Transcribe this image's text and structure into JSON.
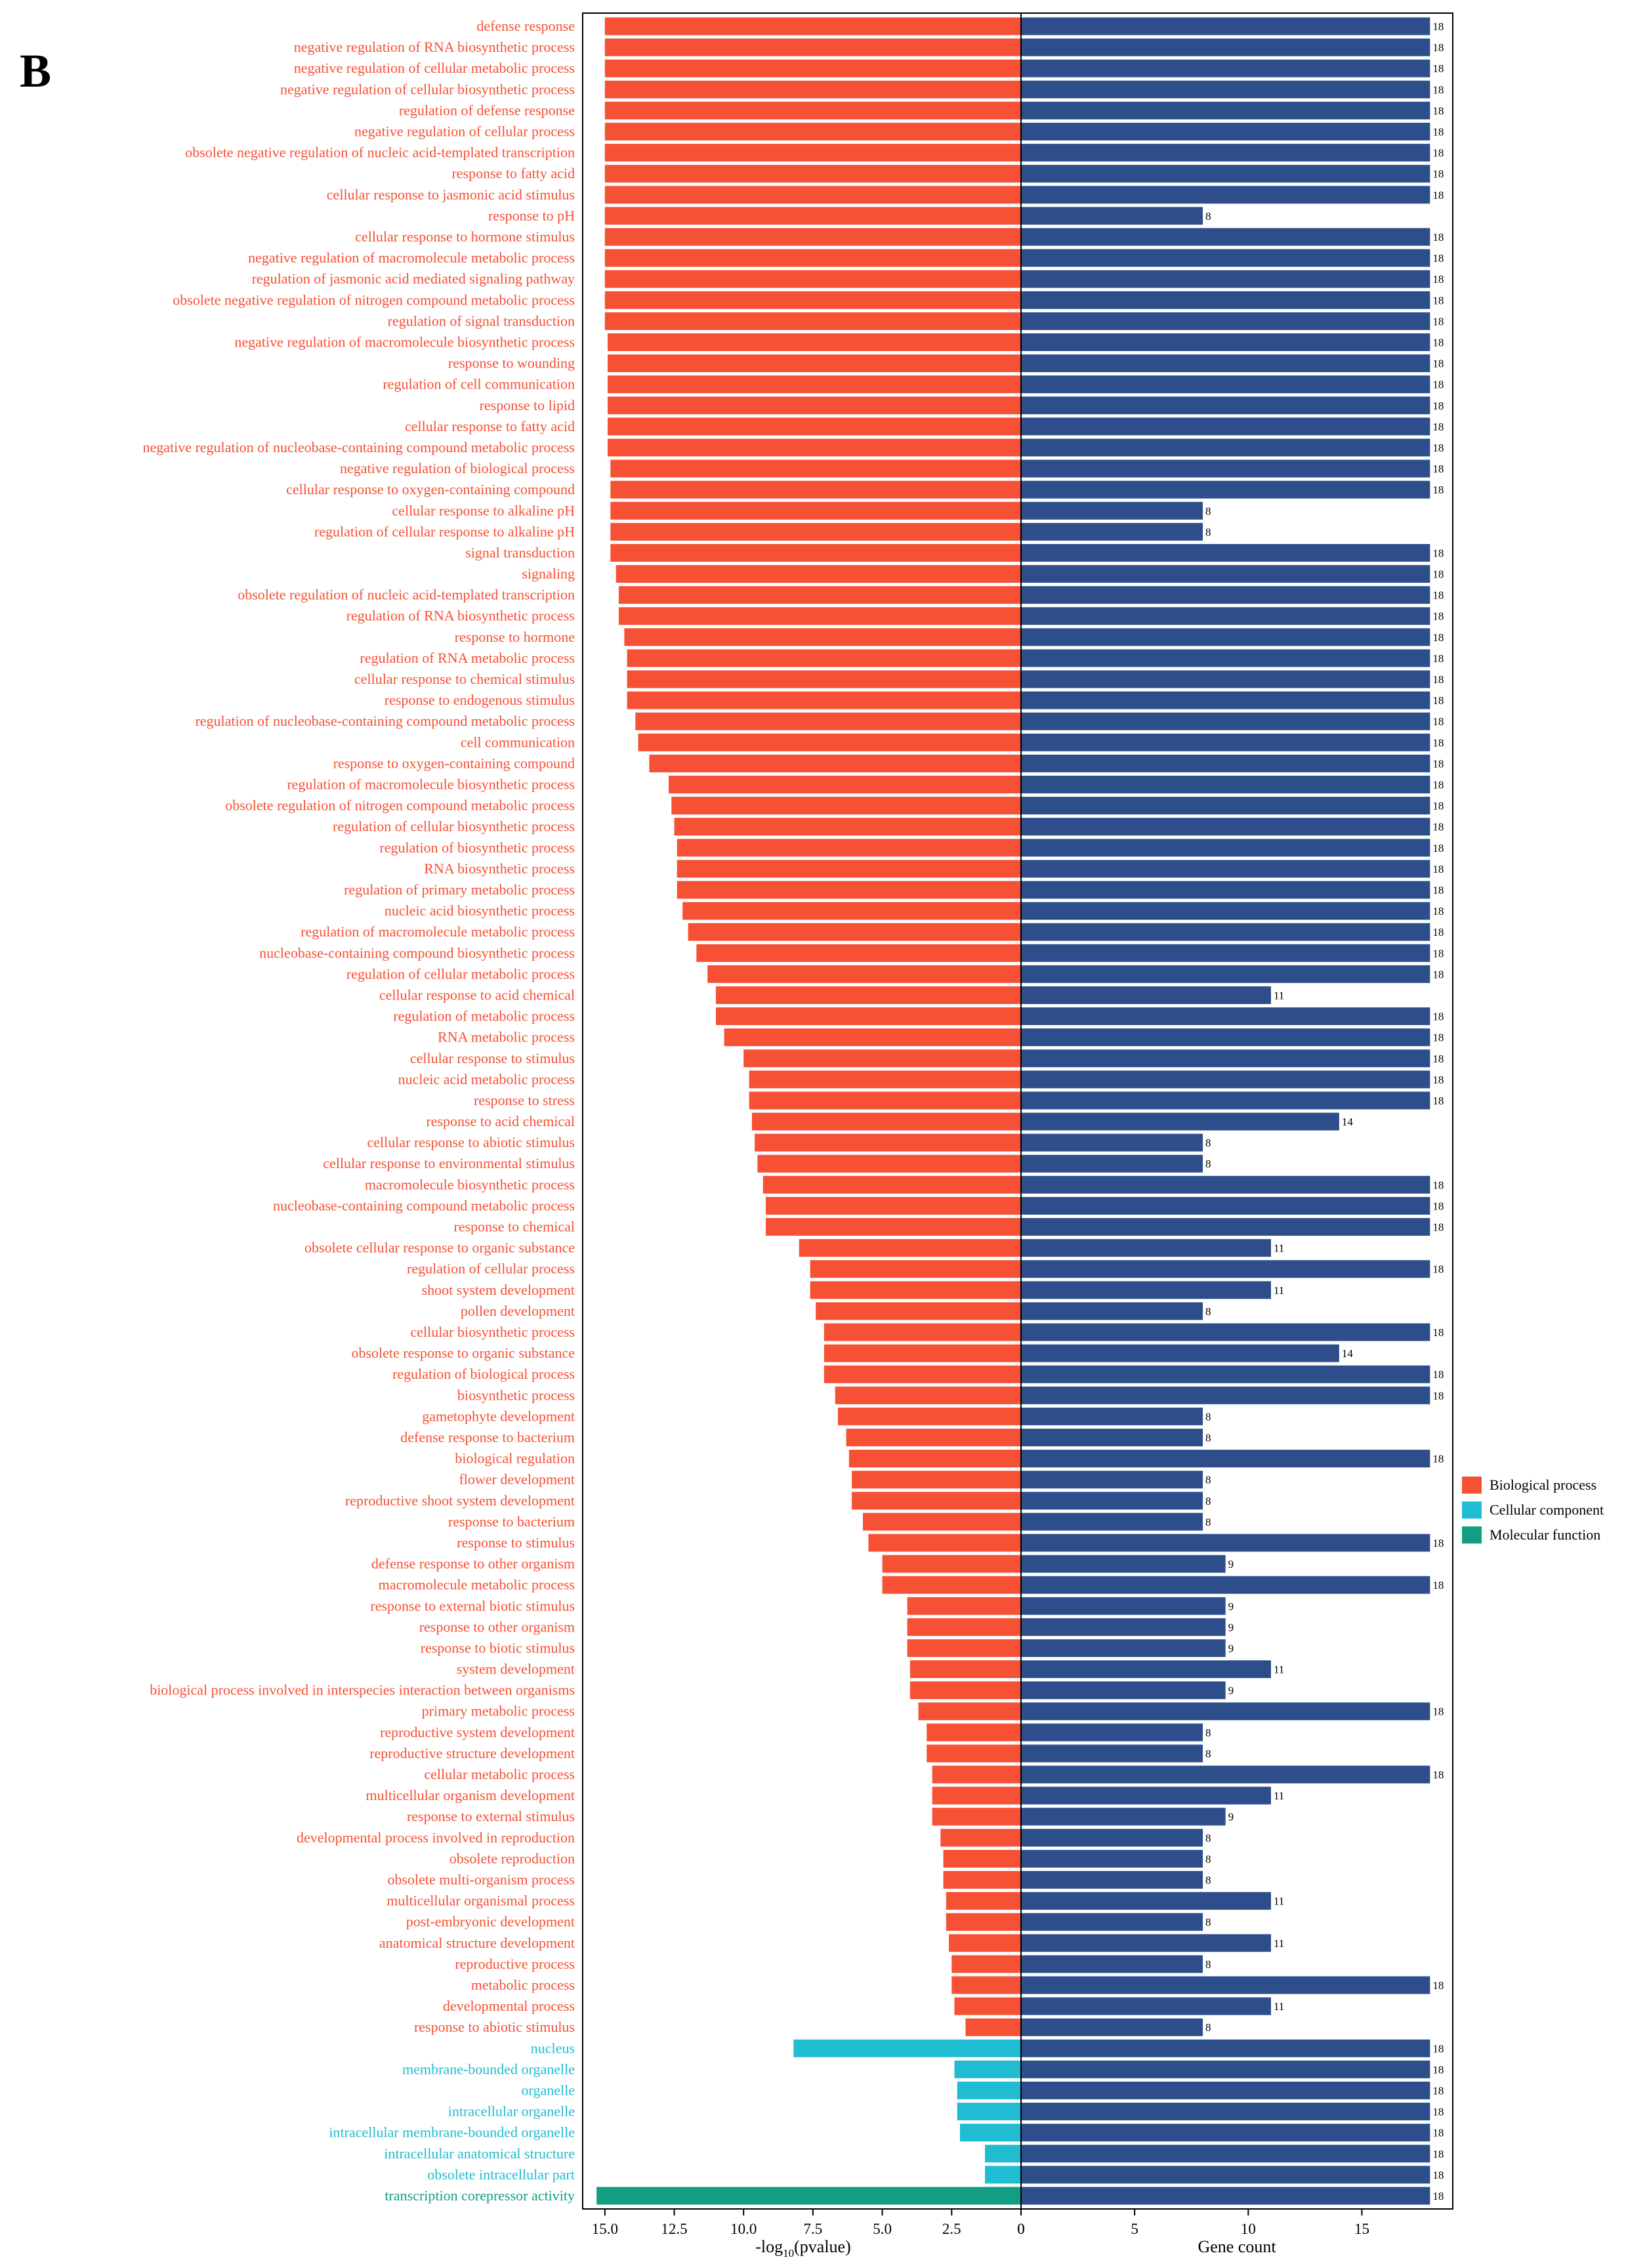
{
  "panel_label": "B",
  "colors": {
    "Biological process": "#f65035",
    "Cellular component": "#20bcd2",
    "Molecular function": "#119e83",
    "gene_count_bar": "#2d4e8b"
  },
  "chart_data": {
    "type": "bar",
    "orientation": "horizontal",
    "title": "",
    "left_panel": {
      "xlabel": "-log10(pvalue)",
      "xlim": [
        15.8,
        0
      ],
      "ticks": [
        "15.0",
        "12.5",
        "10.0",
        "7.5",
        "5.0",
        "2.5",
        "0"
      ]
    },
    "right_panel": {
      "xlabel": "Gene count",
      "xlim": [
        0,
        19
      ],
      "ticks": [
        "0",
        "5",
        "10",
        "15"
      ]
    },
    "legend": {
      "placement": "right",
      "items": [
        "Biological process",
        "Cellular component",
        "Molecular function"
      ]
    },
    "categories": [
      "defense response",
      "negative regulation of RNA biosynthetic process",
      "negative regulation of cellular metabolic process",
      "negative regulation of cellular biosynthetic process",
      "regulation of defense response",
      "negative regulation of cellular process",
      "obsolete negative regulation of nucleic acid-templated transcription",
      "response to fatty acid",
      "cellular response to jasmonic acid stimulus",
      "response to pH",
      "cellular response to hormone stimulus",
      "negative regulation of macromolecule metabolic process",
      "regulation of jasmonic acid mediated signaling pathway",
      "obsolete negative regulation of nitrogen compound metabolic process",
      "regulation of signal transduction",
      "negative regulation of macromolecule biosynthetic process",
      "response to wounding",
      "regulation of cell communication",
      "response to lipid",
      "cellular response to fatty acid",
      "negative regulation of nucleobase-containing compound metabolic process",
      "negative regulation of biological process",
      "cellular response to oxygen-containing compound",
      "cellular response to alkaline pH",
      "regulation of cellular response to alkaline pH",
      "signal transduction",
      "signaling",
      "obsolete regulation of nucleic acid-templated transcription",
      "regulation of RNA biosynthetic process",
      "response to hormone",
      "regulation of RNA metabolic process",
      "cellular response to chemical stimulus",
      "response to endogenous stimulus",
      "regulation of nucleobase-containing compound metabolic process",
      "cell communication",
      "response to oxygen-containing compound",
      "regulation of macromolecule biosynthetic process",
      "obsolete regulation of nitrogen compound metabolic process",
      "regulation of cellular biosynthetic process",
      "regulation of biosynthetic process",
      "RNA biosynthetic process",
      "regulation of primary metabolic process",
      "nucleic acid biosynthetic process",
      "regulation of macromolecule metabolic process",
      "nucleobase-containing compound biosynthetic process",
      "regulation of cellular metabolic process",
      "cellular response to acid chemical",
      "regulation of metabolic process",
      "RNA metabolic process",
      "cellular response to stimulus",
      "nucleic acid metabolic process",
      "response to stress",
      "response to acid chemical",
      "cellular response to abiotic stimulus",
      "cellular response to environmental stimulus",
      "macromolecule biosynthetic process",
      "nucleobase-containing compound metabolic process",
      "response to chemical",
      "obsolete cellular response to organic substance",
      "regulation of cellular process",
      "shoot system development",
      "pollen development",
      "cellular biosynthetic process",
      "obsolete response to organic substance",
      "regulation of biological process",
      "biosynthetic process",
      "gametophyte development",
      "defense response to bacterium",
      "biological regulation",
      "flower development",
      "reproductive shoot system development",
      "response to bacterium",
      "response to stimulus",
      "defense response to other organism",
      "macromolecule metabolic process",
      "response to external biotic stimulus",
      "response to other organism",
      "response to biotic stimulus",
      "system development",
      "biological process involved in interspecies interaction between organisms",
      "primary metabolic process",
      "reproductive system development",
      "reproductive structure development",
      "cellular metabolic process",
      "multicellular organism development",
      "response to external stimulus",
      "developmental process involved in reproduction",
      "obsolete reproduction",
      "obsolete multi-organism process",
      "multicellular organismal process",
      "post-embryonic development",
      "anatomical structure development",
      "reproductive process",
      "metabolic process",
      "developmental process",
      "response to abiotic stimulus",
      "nucleus",
      "membrane-bounded organelle",
      "organelle",
      "intracellular organelle",
      "intracellular membrane-bounded organelle",
      "intracellular anatomical structure",
      "obsolete intracellular part",
      "transcription corepressor activity"
    ],
    "groups": [
      "BP",
      "BP",
      "BP",
      "BP",
      "BP",
      "BP",
      "BP",
      "BP",
      "BP",
      "BP",
      "BP",
      "BP",
      "BP",
      "BP",
      "BP",
      "BP",
      "BP",
      "BP",
      "BP",
      "BP",
      "BP",
      "BP",
      "BP",
      "BP",
      "BP",
      "BP",
      "BP",
      "BP",
      "BP",
      "BP",
      "BP",
      "BP",
      "BP",
      "BP",
      "BP",
      "BP",
      "BP",
      "BP",
      "BP",
      "BP",
      "BP",
      "BP",
      "BP",
      "BP",
      "BP",
      "BP",
      "BP",
      "BP",
      "BP",
      "BP",
      "BP",
      "BP",
      "BP",
      "BP",
      "BP",
      "BP",
      "BP",
      "BP",
      "BP",
      "BP",
      "BP",
      "BP",
      "BP",
      "BP",
      "BP",
      "BP",
      "BP",
      "BP",
      "BP",
      "BP",
      "BP",
      "BP",
      "BP",
      "BP",
      "BP",
      "BP",
      "BP",
      "BP",
      "BP",
      "BP",
      "BP",
      "BP",
      "BP",
      "BP",
      "BP",
      "BP",
      "BP",
      "BP",
      "BP",
      "BP",
      "BP",
      "BP",
      "BP",
      "BP",
      "BP",
      "BP",
      "CC",
      "CC",
      "CC",
      "CC",
      "CC",
      "CC",
      "CC",
      "MF"
    ],
    "series": [
      {
        "name": "-log10(pvalue)",
        "values": [
          15.0,
          15.0,
          15.0,
          15.0,
          15.0,
          15.0,
          15.0,
          15.0,
          15.0,
          15.0,
          15.0,
          15.0,
          15.0,
          15.0,
          15.0,
          14.9,
          14.9,
          14.9,
          14.9,
          14.9,
          14.9,
          14.8,
          14.8,
          14.8,
          14.8,
          14.8,
          14.6,
          14.5,
          14.5,
          14.3,
          14.2,
          14.2,
          14.2,
          13.9,
          13.8,
          13.4,
          12.7,
          12.6,
          12.5,
          12.4,
          12.4,
          12.4,
          12.2,
          12.0,
          11.7,
          11.3,
          11.0,
          11.0,
          10.7,
          10.0,
          9.8,
          9.8,
          9.7,
          9.6,
          9.5,
          9.3,
          9.2,
          9.2,
          8.0,
          7.6,
          7.6,
          7.4,
          7.1,
          7.1,
          7.1,
          6.7,
          6.6,
          6.3,
          6.2,
          6.1,
          6.1,
          5.7,
          5.5,
          5.0,
          5.0,
          4.1,
          4.1,
          4.1,
          4.0,
          4.0,
          3.7,
          3.4,
          3.4,
          3.2,
          3.2,
          3.2,
          2.9,
          2.8,
          2.8,
          2.7,
          2.7,
          2.6,
          2.5,
          2.5,
          2.4,
          2.0,
          8.2,
          2.4,
          2.3,
          2.3,
          2.2,
          1.3,
          1.3,
          15.3
        ]
      },
      {
        "name": "Gene count",
        "values": [
          18,
          18,
          18,
          18,
          18,
          18,
          18,
          18,
          18,
          8,
          18,
          18,
          18,
          18,
          18,
          18,
          18,
          18,
          18,
          18,
          18,
          18,
          18,
          8,
          8,
          18,
          18,
          18,
          18,
          18,
          18,
          18,
          18,
          18,
          18,
          18,
          18,
          18,
          18,
          18,
          18,
          18,
          18,
          18,
          18,
          18,
          11,
          18,
          18,
          18,
          18,
          18,
          14,
          8,
          8,
          18,
          18,
          18,
          11,
          18,
          11,
          8,
          18,
          14,
          18,
          18,
          8,
          8,
          18,
          8,
          8,
          8,
          18,
          9,
          18,
          9,
          9,
          9,
          11,
          9,
          18,
          8,
          8,
          18,
          11,
          9,
          8,
          8,
          8,
          11,
          8,
          11,
          8,
          18,
          11,
          8,
          18,
          18,
          18,
          18,
          18,
          18,
          18,
          18
        ]
      }
    ]
  }
}
